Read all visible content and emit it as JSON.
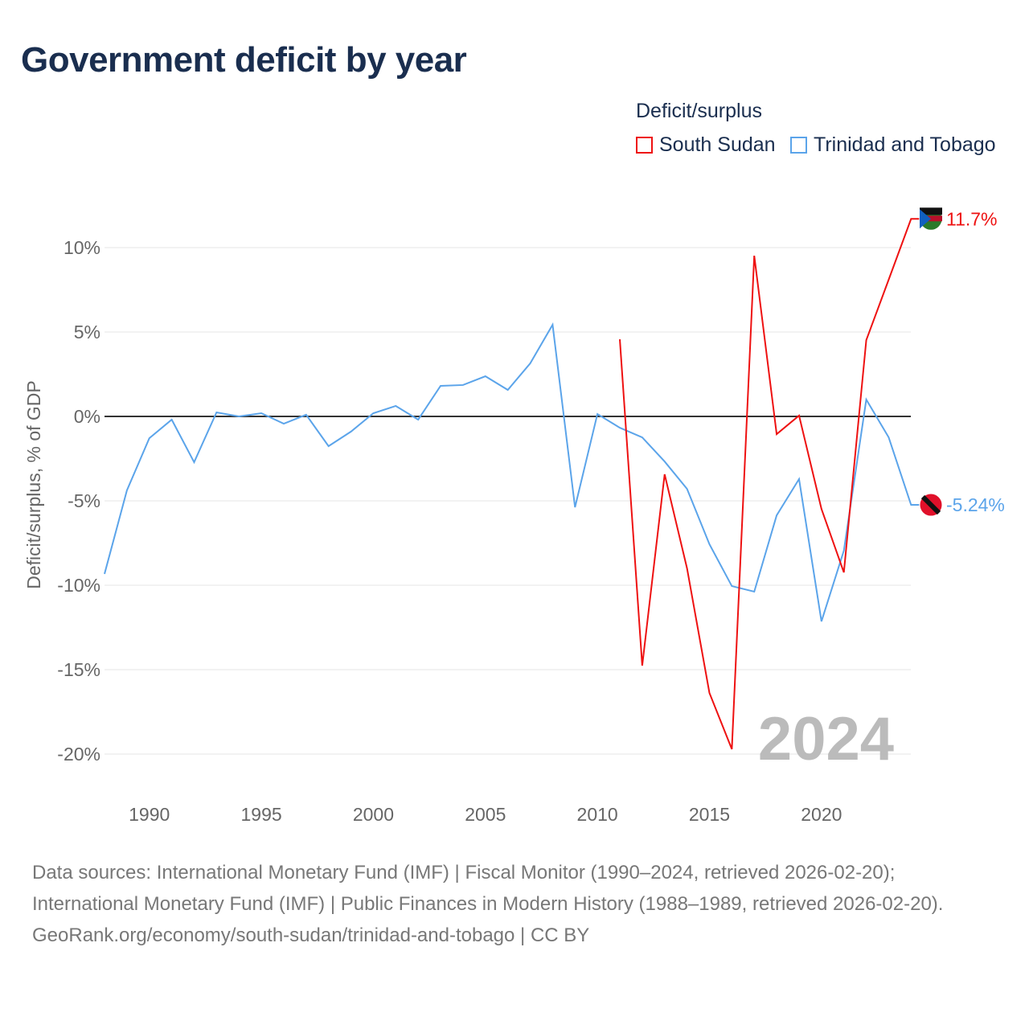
{
  "title": "Government deficit by year",
  "legend": {
    "title": "Deficit/surplus",
    "items": [
      "South Sudan",
      "Trinidad and Tobago"
    ]
  },
  "footer": {
    "line1": "Data sources: International Monetary Fund (IMF) | Fiscal Monitor (1990–2024, retrieved 2026-02-20); International Monetary Fund (IMF) | Public Finances in Modern History (1988–1989, retrieved 2026-02-20).",
    "line2": "GeoRank.org/economy/south-sudan/trinidad-and-tobago | CC BY"
  },
  "chart_data": {
    "type": "line",
    "title": "Government deficit by year",
    "ylabel": "Deficit/surplus, % of GDP",
    "xlim": [
      1988,
      2024
    ],
    "ylim": [
      -22,
      12
    ],
    "yticks": [
      10,
      5,
      0,
      -5,
      -10,
      -15,
      -20
    ],
    "ytick_labels": [
      "10%",
      "5%",
      "0%",
      "-5%",
      "-10%",
      "-15%",
      "-20%"
    ],
    "xticks": [
      1990,
      1995,
      2000,
      2005,
      2010,
      2015,
      2020
    ],
    "year_label": "2024",
    "series": [
      {
        "name": "South Sudan",
        "color": "#ee1111",
        "end_label": "11.7%",
        "x": [
          2011,
          2012,
          2013,
          2014,
          2015,
          2016,
          2017,
          2018,
          2019,
          2020,
          2021,
          2022,
          2023,
          2024
        ],
        "values": [
          4.57,
          -14.76,
          -3.43,
          -9.0,
          -16.38,
          -19.71,
          9.52,
          -1.05,
          0.05,
          -5.48,
          -9.24,
          4.52,
          8.1,
          11.7
        ]
      },
      {
        "name": "Trinidad and Tobago",
        "color": "#5ba4ea",
        "end_label": "-5.24%",
        "x": [
          1988,
          1989,
          1990,
          1991,
          1992,
          1993,
          1994,
          1995,
          1996,
          1997,
          1998,
          1999,
          2000,
          2001,
          2002,
          2003,
          2004,
          2005,
          2006,
          2007,
          2008,
          2009,
          2010,
          2011,
          2012,
          2013,
          2014,
          2015,
          2016,
          2017,
          2018,
          2019,
          2020,
          2021,
          2022,
          2023,
          2024
        ],
        "values": [
          -9.33,
          -4.38,
          -1.29,
          -0.19,
          -2.71,
          0.24,
          0,
          0.19,
          -0.43,
          0.1,
          -1.76,
          -0.9,
          0.19,
          0.62,
          -0.19,
          1.81,
          1.86,
          2.38,
          1.57,
          3.14,
          5.43,
          -5.38,
          0.14,
          -0.67,
          -1.24,
          -2.67,
          -4.29,
          -7.57,
          -10.05,
          -10.38,
          -5.86,
          -3.71,
          -12.14,
          -7.95,
          1.0,
          -1.24,
          -5.24
        ]
      }
    ]
  }
}
